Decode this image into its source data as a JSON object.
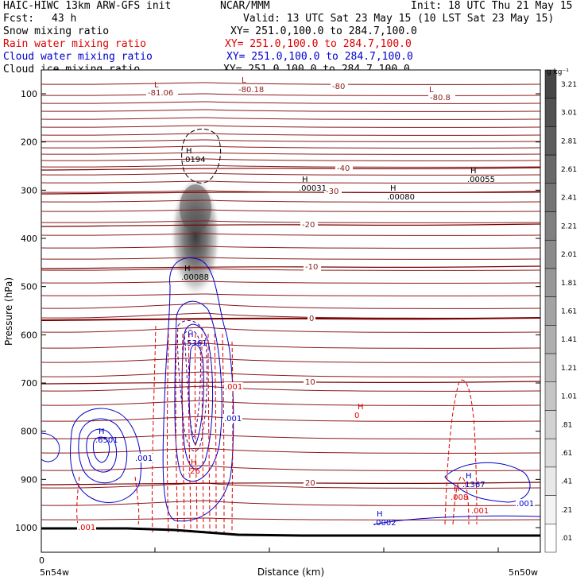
{
  "header": {
    "model": "HAIC-HIWC 13km ARW-GFS init",
    "org": "NCAR/MMM",
    "init": "Init: 18 UTC Thu 21 May 15",
    "fcst_label": "Fcst:",
    "fcst_value": "43 h",
    "valid": "Valid: 13 UTC Sat 23 May 15 (10 LST Sat 23 May 15)",
    "fields": [
      {
        "name": "Snow mixing ratio",
        "xy": "XY= 251.0,100.0 to 284.7,100.0",
        "color": "#000000"
      },
      {
        "name": "Rain water mixing ratio",
        "xy": "XY= 251.0,100.0 to 284.7,100.0",
        "color": "#dd0000"
      },
      {
        "name": "Cloud water mixing ratio",
        "xy": "XY= 251.0,100.0 to 284.7,100.0",
        "color": "#0000cc"
      },
      {
        "name": "Cloud ice mixing ratio",
        "xy": "XY= 251.0,100.0 to 284.7,100.0",
        "color": "#000000"
      }
    ]
  },
  "colorbar": {
    "unit": "g kg⁻¹",
    "labels": [
      "3.21",
      "3.01",
      "2.81",
      "2.61",
      "2.41",
      "2.21",
      "2.01",
      "1.81",
      "1.61",
      "1.41",
      "1.21",
      "1.01",
      ".81",
      ".61",
      ".41",
      ".21",
      ".01"
    ]
  },
  "chart_data": {
    "type": "cross-section",
    "ylabel": "Pressure (hPa)",
    "xlabel": "Distance (km)",
    "y_ticks": [
      100,
      200,
      300,
      400,
      500,
      600,
      700,
      800,
      900,
      1000
    ],
    "y_scale": "linear-inverted",
    "x_start_tick": "0",
    "x_left_label": "5n54w",
    "x_right_label": "5n50w",
    "temperature_contours": [
      {
        "label": "-81.06",
        "marker": "L"
      },
      {
        "label": "-80.18",
        "marker": "L"
      },
      {
        "label": "-80",
        "marker": ""
      },
      {
        "label": "-80.8",
        "marker": "L"
      },
      {
        "label": "-40",
        "marker": ""
      },
      {
        "label": "-30",
        "marker": ""
      },
      {
        "label": "-20",
        "marker": ""
      },
      {
        "label": "-10",
        "marker": ""
      },
      {
        "label": "0",
        "marker": ""
      },
      {
        "label": "10",
        "marker": ""
      },
      {
        "label": "20",
        "marker": ""
      }
    ],
    "maxima": [
      {
        "marker": "H",
        "value": ".0194",
        "field": "cloud ice"
      },
      {
        "marker": "H",
        "value": ".00031",
        "field": "cloud ice"
      },
      {
        "marker": "H",
        "value": ".00080",
        "field": "cloud ice"
      },
      {
        "marker": "H",
        "value": ".00055",
        "field": "cloud ice"
      },
      {
        "marker": "H",
        "value": ".00088",
        "field": "snow"
      },
      {
        "marker": "H",
        "value": ".5361",
        "field": "cloud water"
      },
      {
        "marker": "H",
        "value": ".6501",
        "field": "cloud water"
      },
      {
        "marker": "H",
        "value": ".26",
        "field": "rain water"
      },
      {
        "marker": "H",
        "value": ".1367",
        "field": "cloud water"
      },
      {
        "marker": "H",
        "value": ".008",
        "field": "rain water"
      },
      {
        "marker": "H",
        "value": ".0002",
        "field": "cloud water"
      },
      {
        "marker": "H",
        "value": "0",
        "field": "rain water"
      }
    ],
    "contour_labels": [
      {
        "value": ".001",
        "field": "rain water"
      },
      {
        "value": ".001",
        "field": "cloud water"
      },
      {
        "value": ".001",
        "field": "cloud water"
      },
      {
        "value": ".001",
        "field": "rain water"
      },
      {
        "value": ".001",
        "field": "cloud water"
      },
      {
        "value": ".001",
        "field": "rain water"
      }
    ]
  }
}
